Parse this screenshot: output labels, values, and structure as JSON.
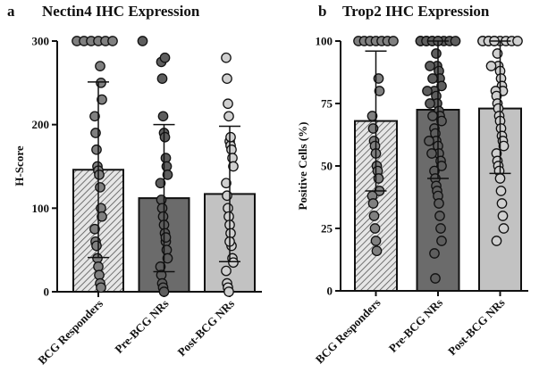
{
  "chart_data": [
    {
      "type": "bar",
      "panel_label": "a",
      "title": "Nectin4 IHC Expression",
      "xlabel": "",
      "ylabel": "H-Score",
      "ylim": [
        0,
        300
      ],
      "yticks": [
        0,
        100,
        200,
        300
      ],
      "categories": [
        "BCG Responders",
        "Pre-BCG NRs",
        "Post-BCG NRs"
      ],
      "means": [
        146,
        112,
        117
      ],
      "sd_upper": [
        251,
        200,
        198
      ],
      "sd_lower": [
        41,
        24,
        36
      ],
      "fills": [
        "hatched",
        "#6b6b6b",
        "#c2c2c2"
      ],
      "points": [
        [
          300,
          300,
          300,
          300,
          300,
          300,
          270,
          250,
          230,
          210,
          190,
          170,
          150,
          145,
          140,
          125,
          100,
          90,
          75,
          60,
          55,
          40,
          30,
          20,
          10,
          5
        ],
        [
          300,
          275,
          255,
          210,
          190,
          185,
          160,
          150,
          140,
          130,
          110,
          100,
          90,
          80,
          70,
          60,
          50,
          40,
          30,
          20,
          10,
          5,
          0,
          280,
          65
        ],
        [
          280,
          255,
          225,
          210,
          180,
          175,
          170,
          160,
          150,
          130,
          115,
          100,
          90,
          80,
          70,
          55,
          40,
          35,
          25,
          10,
          5,
          0,
          60,
          185
        ]
      ]
    },
    {
      "type": "bar",
      "panel_label": "b",
      "title": "Trop2 IHC Expression",
      "xlabel": "",
      "ylabel": "Positive Cells (%)",
      "ylim": [
        0,
        100
      ],
      "yticks": [
        0,
        25,
        50,
        75,
        100
      ],
      "categories": [
        "BCG Responders",
        "Pre-BCG NRs",
        "Post-BCG NRs"
      ],
      "means": [
        68,
        72.5,
        73
      ],
      "sd_upper": [
        96,
        100,
        100
      ],
      "sd_lower": [
        40,
        45,
        47
      ],
      "fills": [
        "hatched",
        "#6b6b6b",
        "#c2c2c2"
      ],
      "points": [
        [
          100,
          100,
          100,
          100,
          100,
          100,
          100,
          85,
          80,
          70,
          65,
          60,
          58,
          55,
          50,
          48,
          45,
          40,
          38,
          35,
          30,
          25,
          20,
          16
        ],
        [
          100,
          100,
          100,
          100,
          100,
          100,
          100,
          100,
          100,
          100,
          100,
          95,
          90,
          90,
          88,
          85,
          85,
          82,
          80,
          80,
          78,
          75,
          75,
          72,
          70,
          70,
          68,
          65,
          63,
          60,
          60,
          58,
          55,
          55,
          52,
          50,
          48,
          45,
          42,
          40,
          38,
          35,
          30,
          25,
          20,
          15,
          5
        ],
        [
          100,
          100,
          100,
          100,
          100,
          100,
          100,
          100,
          100,
          100,
          95,
          90,
          90,
          88,
          85,
          82,
          80,
          80,
          78,
          75,
          73,
          70,
          68,
          65,
          62,
          60,
          58,
          55,
          52,
          50,
          48,
          45,
          40,
          35,
          30,
          25,
          20
        ]
      ]
    }
  ]
}
